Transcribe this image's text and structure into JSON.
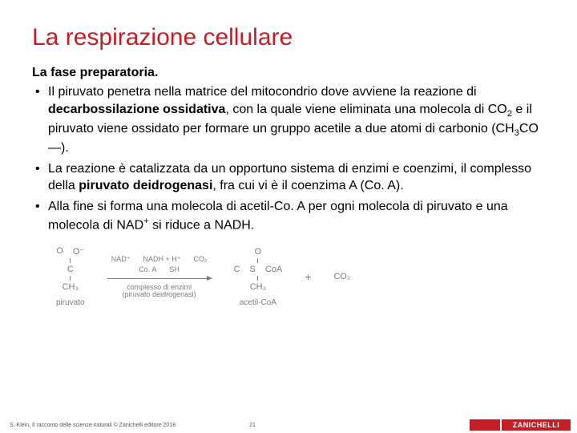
{
  "title": "La respirazione cellulare",
  "subtitle": "La fase preparatoria.",
  "bullets": {
    "b1_a": "Il piruvato penetra nella matrice del mitocondrio dove avviene la reazione di ",
    "b1_b": "decarbossilazione ossidativa",
    "b1_c": ", con la quale viene eliminata una molecola di CO",
    "b1_d": " e il piruvato viene ossidato per formare un gruppo acetile a due atomi di carbonio (CH",
    "b1_e": "CO—).",
    "b2_a": "La reazione è catalizzata da un opportuno sistema di enzimi e coenzimi, il complesso della ",
    "b2_b": "piruvato deidrogenasi",
    "b2_c": ", fra cui vi è il coenzima A (Co. A).",
    "b3_a": "Alla fine si forma una molecola di acetil-Co. A per ogni molecola di piruvato e una molecola di NAD",
    "b3_b": " si riduce a NADH."
  },
  "diagram": {
    "pyruvate": {
      "top_l": "O",
      "top_r": "O⁻",
      "mid": "C",
      "bot": "CH₃",
      "label": "piruvato"
    },
    "arrow": {
      "nad": "NAD⁺",
      "nadh": "NADH + H⁺",
      "co2": "CO₂",
      "coa": "Co. A",
      "sh": "SH",
      "complex_l1": "complesso di enzimi",
      "complex_l2": "(piruvato deidrogenasi)"
    },
    "acetyl": {
      "top_l": "O",
      "mid_l": "C",
      "mid_r": "S",
      "mid_r2": "CoA",
      "bot": "CH₃",
      "label": "acetil-CoA"
    },
    "plus": "+",
    "co2": "CO₂"
  },
  "footer": {
    "source": "S. Klein, Il racconto delle scienze naturali © Zanichelli editore 2018",
    "page": "21",
    "brand": "ZANICHELLI"
  },
  "colors": {
    "accent": "#c41e24"
  }
}
